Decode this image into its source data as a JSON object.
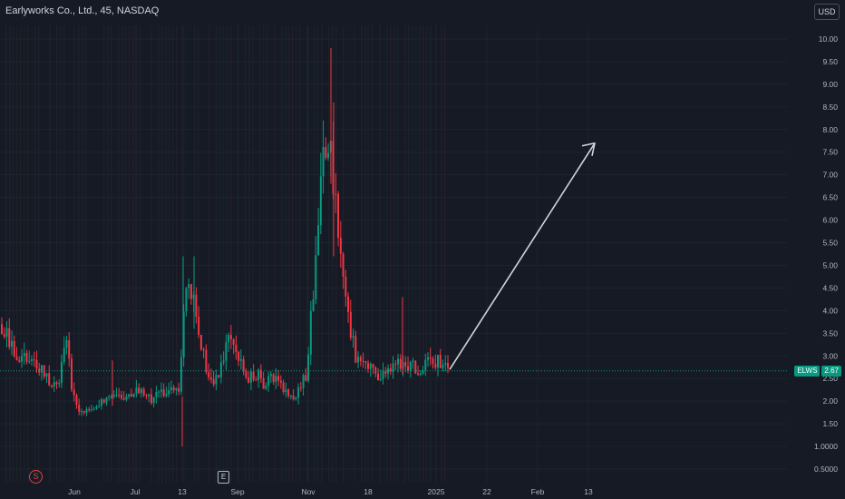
{
  "header": {
    "title": "Earlyworks Co., Ltd., 45, NASDAQ",
    "currency": "USD"
  },
  "last_price": {
    "symbol": "ELWS",
    "value": "2.67"
  },
  "events": {
    "split_marker": "S",
    "earnings_marker": "E"
  },
  "colors": {
    "background": "#161a25",
    "up": "#089981",
    "down": "#f23645",
    "arrow": "#d1d4dc",
    "price_line": "#089981"
  },
  "chart_data": {
    "type": "candlestick",
    "x_ticks": [
      "Jun",
      "Jul",
      "13",
      "Sep",
      "Nov",
      "18",
      "2025",
      "22",
      "Feb",
      "13"
    ],
    "y_ticks": [
      "10.00",
      "9.50",
      "9.00",
      "8.50",
      "8.00",
      "7.50",
      "7.00",
      "6.50",
      "6.00",
      "5.50",
      "5.00",
      "4.50",
      "4.00",
      "3.50",
      "3.00",
      "2.50",
      "2.00",
      "1.50",
      "1.0000",
      "0.5000"
    ],
    "ylim": [
      0.3,
      10.7
    ],
    "last_close": 2.67,
    "series": [
      {
        "points": [
          3.7,
          3.3,
          3.1,
          2.9,
          3.0,
          2.7,
          2.6,
          2.4,
          2.3,
          3.5,
          2.1,
          1.7,
          1.8,
          1.9,
          2.0,
          2.1,
          2.2,
          2.1,
          2.2,
          2.3,
          2.2,
          2.0,
          2.1,
          2.2,
          2.3,
          2.2,
          4.6,
          4.2,
          3.4,
          2.6,
          2.4,
          2.8,
          3.3,
          3.0,
          2.7,
          2.5,
          2.6,
          2.4,
          2.5,
          2.4,
          2.2,
          2.1,
          2.2,
          2.6,
          4.5,
          7.0,
          8.0,
          6.5,
          4.8,
          3.7,
          3.0,
          2.8,
          2.7,
          2.6,
          2.6,
          2.7,
          2.8,
          2.7,
          2.8,
          2.7,
          2.9,
          2.8,
          2.9,
          2.7
        ],
        "high": 9.8,
        "low": 1.0
      }
    ]
  },
  "annotation": {
    "type": "arrow",
    "from": {
      "date_index": 63,
      "price": 2.7
    },
    "to": {
      "date_index": 91,
      "price": 7.7
    }
  }
}
